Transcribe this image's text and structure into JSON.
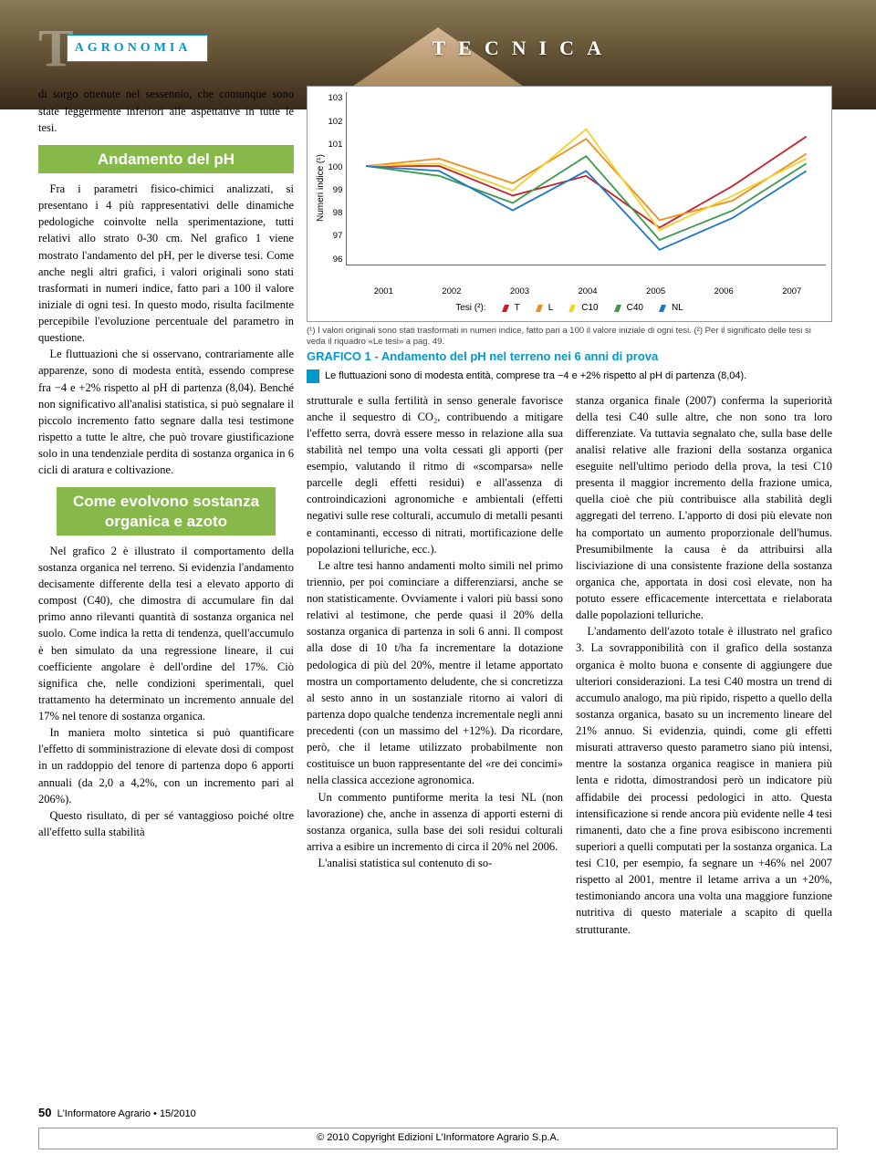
{
  "header": {
    "big_t": "T",
    "section_label": "AGRONOMIA",
    "section_title": "TECNICA"
  },
  "col1": {
    "lead": "di sorgo ottenute nel sessennio, che comunque sono state leggermente inferiori alle aspettative in tutte le tesi.",
    "sub1": "Andamento del pH",
    "p1": "Fra i parametri fisico-chimici analizzati, si presentano i 4 più rappresentativi delle dinamiche pedologiche coinvolte nella sperimentazione, tutti relativi allo strato 0-30 cm. Nel grafico 1 viene mostrato l'andamento del pH, per le diverse tesi. Come anche negli altri grafici, i valori originali sono stati trasformati in numeri indice, fatto pari a 100 il valore iniziale di ogni tesi. In questo modo, risulta facilmente percepibile l'evoluzione percentuale del parametro in questione.",
    "p2": "Le fluttuazioni che si osservano, contrariamente alle apparenze, sono di modesta entità, essendo comprese fra −4 e +2% rispetto al pH di partenza (8,04). Benché non significativo all'analisi statistica, si può segnalare il piccolo incremento fatto segnare dalla tesi testimone rispetto a tutte le altre, che può trovare giustificazione solo in una tendenziale perdita di sostanza organica in 6 cicli di aratura e coltivazione.",
    "sub2": "Come evolvono sostanza organica e azoto",
    "p3": "Nel grafico 2 è illustrato il comportamento della sostanza organica nel terreno. Si evidenzia l'andamento decisamente differente della tesi a elevato apporto di compost (C40), che dimostra di accumulare fin dal primo anno rilevanti quantità di sostanza organica nel suolo. Come indica la retta di tendenza, quell'accumulo è ben simulato da una regressione lineare, il cui coefficiente angolare è dell'ordine del 17%. Ciò significa che, nelle condizioni sperimentali, quel trattamento ha determinato un incremento annuale del 17% nel tenore di sostanza organica.",
    "p4": "In maniera molto sintetica si può quantificare l'effetto di somministrazione di elevate dosi di compost in un raddoppio del tenore di partenza dopo 6 apporti annuali (da 2,0 a 4,2%, con un incremento pari al 206%).",
    "p5": "Questo risultato, di per sé vantaggioso poiché oltre all'effetto sulla stabilità"
  },
  "chart": {
    "type": "line",
    "y_title": "Numeri indice (¹)",
    "ylim": [
      96,
      103
    ],
    "yticks": [
      103,
      102,
      101,
      100,
      99,
      98,
      97,
      96
    ],
    "xticks": [
      "2001",
      "2002",
      "2003",
      "2004",
      "2005",
      "2006",
      "2007"
    ],
    "legend_label": "Tesi (²):",
    "series": [
      {
        "name": "T",
        "color": "#c81e28",
        "values": [
          100,
          100,
          98.8,
          99.6,
          97.5,
          99.2,
          101.2
        ]
      },
      {
        "name": "L",
        "color": "#f08c1e",
        "values": [
          100,
          100.3,
          99.3,
          101.1,
          97.8,
          98.6,
          100.5
        ]
      },
      {
        "name": "C10",
        "color": "#f2d22a",
        "values": [
          100,
          100.1,
          99.0,
          101.5,
          97.4,
          98.8,
          100.3
        ]
      },
      {
        "name": "C40",
        "color": "#3c9a4a",
        "values": [
          100,
          99.6,
          98.5,
          100.4,
          97.0,
          98.2,
          100.1
        ]
      },
      {
        "name": "NL",
        "color": "#1e78c8",
        "values": [
          100,
          99.8,
          98.2,
          99.8,
          96.6,
          97.9,
          99.8
        ]
      }
    ],
    "note": "(¹) I valori originali sono stati trasformati in numeri indice, fatto pari a 100 il valore iniziale di ogni tesi. (²) Per il significato delle tesi si veda il riquadro «Le tesi» a pag. 49.",
    "title": "GRAFICO 1 - Andamento del pH nel terreno nei 6 anni di prova",
    "desc": "Le fluttuazioni sono di modesta entità, comprese tra −4 e +2% rispetto al pH di partenza (8,04).",
    "line_width": 1.8,
    "background_color": "#ffffff",
    "border_color": "#999999"
  },
  "col2": {
    "p1": "strutturale e sulla fertilità in senso generale favorisce anche il sequestro di CO₂, contribuendo a mitigare l'effetto serra, dovrà essere messo in relazione alla sua stabilità nel tempo una volta cessati gli apporti (per esempio, valutando il ritmo di «scomparsa» nelle parcelle degli effetti residui) e all'assenza di controindicazioni agronomiche e ambientali (effetti negativi sulle rese colturali, accumulo di metalli pesanti e contaminanti, eccesso di nitrati, mortificazione delle popolazioni telluriche, ecc.).",
    "p2": "Le altre tesi hanno andamenti molto simili nel primo triennio, per poi cominciare a differenziarsi, anche se non statisticamente. Ovviamente i valori più bassi sono relativi al testimone, che perde quasi il 20% della sostanza organica di partenza in soli 6 anni. Il compost alla dose di 10 t/ha fa incrementare la dotazione pedologica di più del 20%, mentre il letame apportato mostra un comportamento deludente, che si concretizza al sesto anno in un sostanziale ritorno ai valori di partenza dopo qualche tendenza incrementale negli anni precedenti (con un massimo del +12%). Da ricordare, però, che il letame utilizzato probabilmente non costituisce un buon rappresentante del «re dei concimi» nella classica accezione agronomica.",
    "p3": "Un commento puntiforme merita la tesi NL (non lavorazione) che, anche in assenza di apporti esterni di sostanza organica, sulla base dei soli residui colturali arriva a esibire un incremento di circa il 20% nel 2006.",
    "p4": "L'analisi statistica sul contenuto di so-"
  },
  "col3": {
    "p1": "stanza organica finale (2007) conferma la superiorità della tesi C40 sulle altre, che non sono tra loro differenziate. Va tuttavia segnalato che, sulla base delle analisi relative alle frazioni della sostanza organica eseguite nell'ultimo periodo della prova, la tesi C10 presenta il maggior incremento della frazione umica, quella cioè che più contribuisce alla stabilità degli aggregati del terreno. L'apporto di dosi più elevate non ha comportato un aumento proporzionale dell'humus. Presumibilmente la causa è da attribuirsi alla lisciviazione di una consistente frazione della sostanza organica che, apportata in dosi così elevate, non ha potuto essere efficacemente intercettata e rielaborata dalle popolazioni telluriche.",
    "p2": "L'andamento dell'azoto totale è illustrato nel grafico 3. La sovrapponibilità con il grafico della sostanza organica è molto buona e consente di aggiungere due ulteriori considerazioni. La tesi C40 mostra un trend di accumulo analogo, ma più ripido, rispetto a quello della sostanza organica, basato su un incremento lineare del 21% annuo. Si evidenzia, quindi, come gli effetti misurati attraverso questo parametro siano più intensi, mentre la sostanza organica reagisce in maniera più lenta e ridotta, dimostrandosi però un indicatore più affidabile dei processi pedologici in atto. Questa intensificazione si rende ancora più evidente nelle 4 tesi rimanenti, dato che a fine prova esibiscono incrementi superiori a quelli computati per la sostanza organica. La tesi C10, per esempio, fa segnare un +46% nel 2007 rispetto al 2001, mentre il letame arriva a un +20%, testimoniando ancora una volta una maggiore funzione nutritiva di questo materiale a scapito di quella strutturante."
  },
  "footer": {
    "page": "50",
    "pub": "L'Informatore Agrario •",
    "issue": "15/2010",
    "copyright": "© 2010 Copyright Edizioni L'Informatore Agrario S.p.A."
  }
}
